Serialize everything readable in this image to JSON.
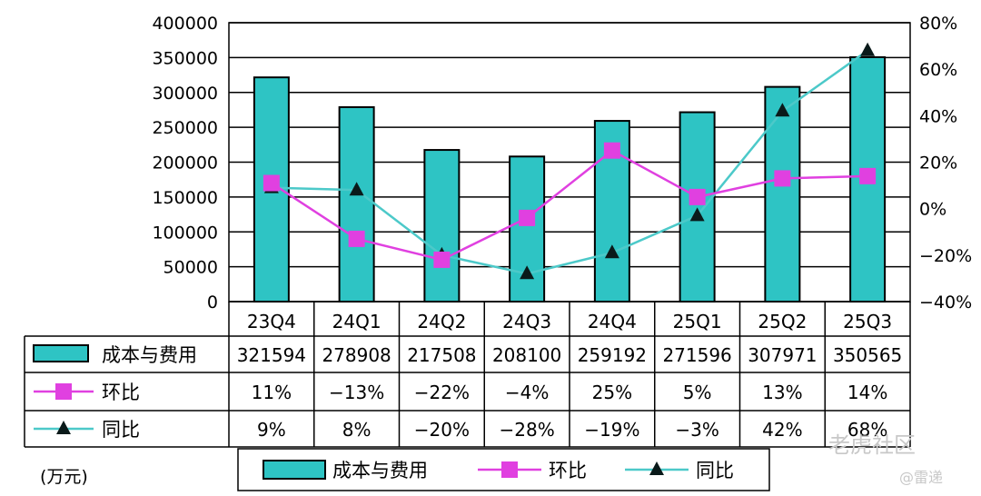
{
  "chart_data": {
    "type": "bar",
    "categories": [
      "23Q4",
      "24Q1",
      "24Q2",
      "24Q3",
      "24Q4",
      "25Q1",
      "25Q2",
      "25Q3"
    ],
    "series": [
      {
        "name": "成本与费用",
        "kind": "bar",
        "axis": "left",
        "values": [
          321594,
          278908,
          217508,
          208100,
          259192,
          271596,
          307971,
          350565
        ]
      },
      {
        "name": "环比",
        "kind": "line",
        "axis": "right",
        "marker": "square",
        "values": [
          11,
          -13,
          -22,
          -4,
          25,
          5,
          13,
          14
        ],
        "labels": [
          "11%",
          "−13%",
          "−22%",
          "−4%",
          "25%",
          "5%",
          "13%",
          "14%"
        ]
      },
      {
        "name": "同比",
        "kind": "line",
        "axis": "right",
        "marker": "triangle",
        "values": [
          9,
          8,
          -20,
          -28,
          -19,
          -3,
          42,
          68
        ],
        "labels": [
          "9%",
          "8%",
          "−20%",
          "−28%",
          "−19%",
          "−3%",
          "42%",
          "68%"
        ]
      }
    ],
    "left_axis": {
      "min": 0,
      "max": 400000,
      "step": 50000,
      "ticks": [
        "0",
        "50000",
        "100000",
        "150000",
        "200000",
        "250000",
        "300000",
        "350000",
        "400000"
      ]
    },
    "right_axis": {
      "min": -40,
      "max": 80,
      "step": 20,
      "ticks": [
        "−40%",
        "−20%",
        "0%",
        "20%",
        "40%",
        "60%",
        "80%"
      ]
    },
    "unit_label": "(万元)",
    "legend": [
      "成本与费用",
      "环比",
      "同比"
    ],
    "colors": {
      "bar": "#2ec4c4",
      "bar_edge": "#000000",
      "mom": "#e040e0",
      "yoy_line": "#4cc9c9",
      "yoy_marker": "#0a1a1a"
    }
  },
  "watermark": {
    "main": "老虎社区",
    "sub": "@雷递"
  }
}
